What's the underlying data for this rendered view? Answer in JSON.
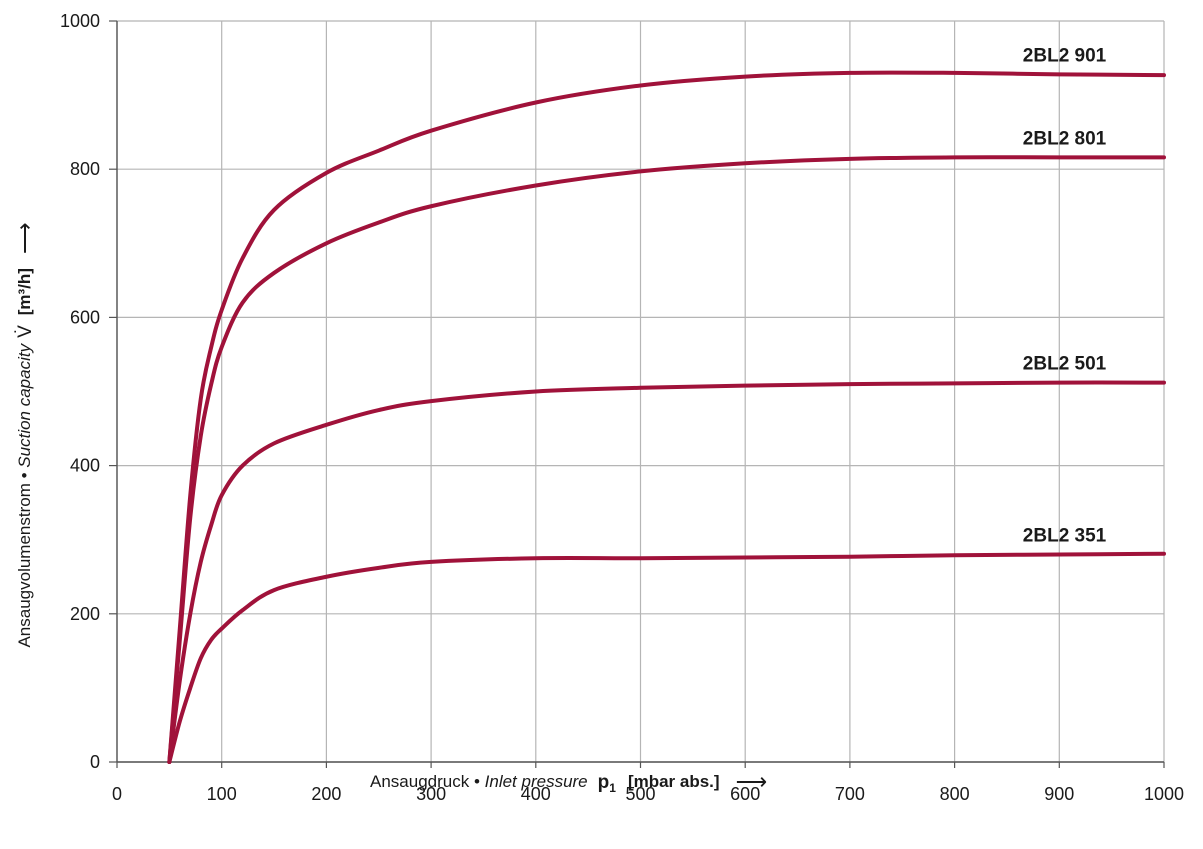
{
  "chart_data": {
    "type": "line",
    "xlabel": {
      "de": "Ansaugdruck",
      "sep": " • ",
      "en": "Inlet pressure",
      "symbol": "p",
      "subscript": "1",
      "unit": "[mbar abs.]",
      "arrow": "⟶"
    },
    "ylabel": {
      "de": "Ansaugvolumenstrom",
      "sep": " • ",
      "en": "Suction capacity",
      "symbol": "V̇",
      "unit": "[m³/h]",
      "arrow": "⟶"
    },
    "xlim": [
      0,
      1000
    ],
    "ylim": [
      0,
      1000
    ],
    "x_ticks": [
      "0",
      "100",
      "200",
      "300",
      "400",
      "500",
      "600",
      "700",
      "800",
      "900",
      "1000"
    ],
    "y_ticks": [
      "0",
      "200",
      "400",
      "600",
      "800",
      "1000"
    ],
    "grid": true,
    "line_color": "#A0123A",
    "series": [
      {
        "name": "2BL2 901",
        "points": [
          [
            50,
            0
          ],
          [
            60,
            180
          ],
          [
            70,
            360
          ],
          [
            80,
            490
          ],
          [
            90,
            560
          ],
          [
            100,
            610
          ],
          [
            120,
            680
          ],
          [
            150,
            745
          ],
          [
            200,
            795
          ],
          [
            250,
            825
          ],
          [
            300,
            852
          ],
          [
            400,
            890
          ],
          [
            500,
            913
          ],
          [
            600,
            925
          ],
          [
            700,
            930
          ],
          [
            800,
            930
          ],
          [
            900,
            928
          ],
          [
            1000,
            927
          ]
        ]
      },
      {
        "name": "2BL2 801",
        "points": [
          [
            50,
            0
          ],
          [
            60,
            165
          ],
          [
            70,
            330
          ],
          [
            80,
            440
          ],
          [
            90,
            510
          ],
          [
            100,
            560
          ],
          [
            120,
            620
          ],
          [
            150,
            660
          ],
          [
            200,
            700
          ],
          [
            250,
            728
          ],
          [
            300,
            750
          ],
          [
            400,
            778
          ],
          [
            500,
            797
          ],
          [
            600,
            808
          ],
          [
            700,
            814
          ],
          [
            800,
            816
          ],
          [
            900,
            816
          ],
          [
            1000,
            816
          ]
        ]
      },
      {
        "name": "2BL2 501",
        "points": [
          [
            50,
            0
          ],
          [
            60,
            110
          ],
          [
            70,
            200
          ],
          [
            80,
            270
          ],
          [
            90,
            320
          ],
          [
            100,
            360
          ],
          [
            120,
            400
          ],
          [
            150,
            430
          ],
          [
            200,
            455
          ],
          [
            250,
            475
          ],
          [
            300,
            487
          ],
          [
            400,
            500
          ],
          [
            500,
            505
          ],
          [
            600,
            508
          ],
          [
            700,
            510
          ],
          [
            800,
            511
          ],
          [
            900,
            512
          ],
          [
            1000,
            512
          ]
        ]
      },
      {
        "name": "2BL2 351",
        "points": [
          [
            50,
            0
          ],
          [
            60,
            55
          ],
          [
            70,
            100
          ],
          [
            80,
            140
          ],
          [
            90,
            165
          ],
          [
            100,
            180
          ],
          [
            120,
            205
          ],
          [
            150,
            232
          ],
          [
            200,
            250
          ],
          [
            250,
            262
          ],
          [
            300,
            270
          ],
          [
            400,
            275
          ],
          [
            500,
            275
          ],
          [
            600,
            276
          ],
          [
            700,
            277
          ],
          [
            800,
            279
          ],
          [
            900,
            280
          ],
          [
            1000,
            281
          ]
        ]
      }
    ]
  }
}
